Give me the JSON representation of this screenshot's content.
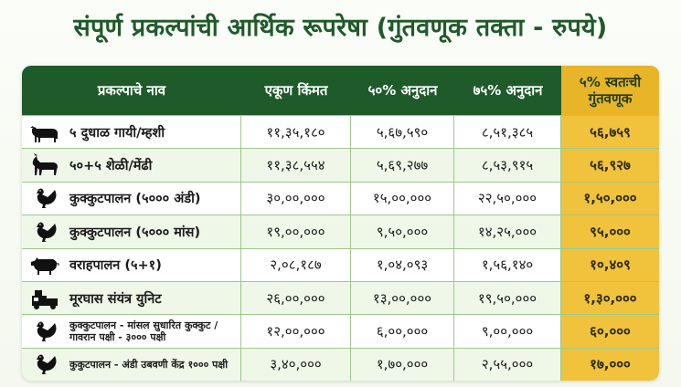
{
  "title": "संपूर्ण प्रकल्पांची आर्थिक रूपरेषा (गुंतवणूक तक्ता - रुपये)",
  "headers": [
    "प्रकल्पाचे नाव",
    "एकूण किंमत",
    "५०% अनुदान",
    "७५% अनुदान",
    "५% स्वतःची गुंतवणूक"
  ],
  "rows": [
    {
      "icon": "cow-icon",
      "name": "५ दुधाळ गायी/म्हशी",
      "total": "११,३५,१८०",
      "subsidy50": "५,६७,५९०",
      "subsidy75": "८,५१,३८५",
      "own5": "५६,७५९"
    },
    {
      "icon": "goat-icon",
      "name": "५०+५ शेळी/मेंढी",
      "total": "११,३८,५५४",
      "subsidy50": "५,६९,२७७",
      "subsidy75": "८,५३,९१५",
      "own5": "५६,९२७"
    },
    {
      "icon": "chicken-icon",
      "name": "कुक्कुटपालन (५००० अंडी)",
      "total": "३०,००,०००",
      "subsidy50": "१५,००,०००",
      "subsidy75": "२२,५०,०००",
      "own5": "१,५०,०००"
    },
    {
      "icon": "chicken-icon",
      "name": "कुक्कुटपालन (५००० मांस)",
      "total": "१९,००,०००",
      "subsidy50": "९,५०,०००",
      "subsidy75": "१४,२५,०००",
      "own5": "९५,०००"
    },
    {
      "icon": "pig-icon",
      "name": "वराहपालन (५+१)",
      "total": "२,०८,१८७",
      "subsidy50": "१,०४,०९३",
      "subsidy75": "१,५६,१४०",
      "own5": "१०,४०९"
    },
    {
      "icon": "fodder-machine-icon",
      "name": "मूरघास संयंत्र युनिट",
      "total": "२६,००,०००",
      "subsidy50": "१३,००,०००",
      "subsidy75": "१९,५०,०००",
      "own5": "१,३०,०००"
    },
    {
      "icon": "chicken-icon",
      "name": "कुक्कुटपालन - मांसल सुधारित कुक्कुट /गावरान पक्षी - ३००० पक्षी",
      "total": "१२,००,०००",
      "subsidy50": "६,००,०००",
      "subsidy75": "९,००,०००",
      "own5": "६०,०००",
      "small": true
    },
    {
      "icon": "chicken-icon",
      "name": "कुकुटपालन - अंडी उबवणी केंद्र १००० पक्षी",
      "total": "३,४०,०००",
      "subsidy50": "१,७०,०००",
      "subsidy75": "२,५५,०००",
      "own5": "१७,०००",
      "small": true
    }
  ],
  "colors": {
    "header_green": "#1f5a2a",
    "accent_gold": "#f1c23c",
    "row_tint": "#eef7e8"
  }
}
